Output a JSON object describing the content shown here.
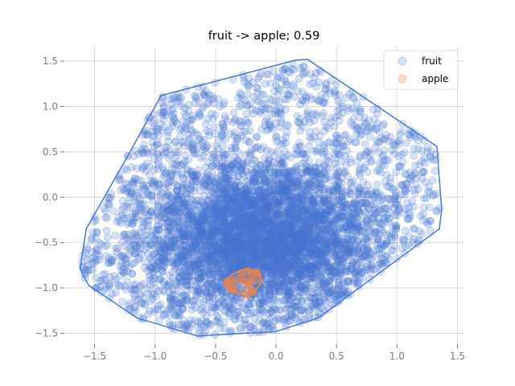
{
  "chart_data": {
    "type": "scatter",
    "title": "fruit -> apple; 0.59",
    "xlabel": "",
    "ylabel": "",
    "xlim": [
      -1.75,
      1.55
    ],
    "ylim": [
      -1.62,
      1.66
    ],
    "grid": true,
    "legend_position": "top-right",
    "x_ticks": [
      -1.5,
      -1.0,
      -0.5,
      0.0,
      0.5,
      1.0,
      1.5
    ],
    "x_tick_labels": [
      "−1.5",
      "−1.0",
      "−0.5",
      "0.0",
      "0.5",
      "1.0",
      "1.5"
    ],
    "y_ticks": [
      -1.5,
      -1.0,
      -0.5,
      0.0,
      0.5,
      1.0,
      1.5
    ],
    "y_tick_labels": [
      "−1.5",
      "−1.0",
      "−0.5",
      "0.0",
      "0.5",
      "1.0",
      "1.5"
    ],
    "series": [
      {
        "name": "fruit",
        "color": "#4878d0",
        "alpha": 0.22,
        "hull": [
          [
            0.16,
            1.51
          ],
          [
            0.26,
            1.52
          ],
          [
            1.33,
            0.56
          ],
          [
            1.37,
            -0.14
          ],
          [
            1.35,
            -0.35
          ],
          [
            0.35,
            -1.33
          ],
          [
            0.0,
            -1.48
          ],
          [
            -0.65,
            -1.53
          ],
          [
            -1.15,
            -1.33
          ],
          [
            -1.55,
            -0.97
          ],
          [
            -1.62,
            -0.79
          ],
          [
            -1.57,
            -0.35
          ],
          [
            -1.22,
            0.47
          ],
          [
            -0.95,
            1.12
          ]
        ],
        "point_count": 6000
      },
      {
        "name": "apple",
        "color": "#ee854a",
        "alpha": 0.3,
        "hull": [
          [
            -0.25,
            -0.79
          ],
          [
            -0.14,
            -0.83
          ],
          [
            -0.12,
            -0.93
          ],
          [
            -0.18,
            -1.05
          ],
          [
            -0.23,
            -1.1
          ],
          [
            -0.4,
            -1.01
          ],
          [
            -0.42,
            -0.92
          ],
          [
            -0.35,
            -0.84
          ]
        ],
        "point_count": 45
      }
    ]
  }
}
